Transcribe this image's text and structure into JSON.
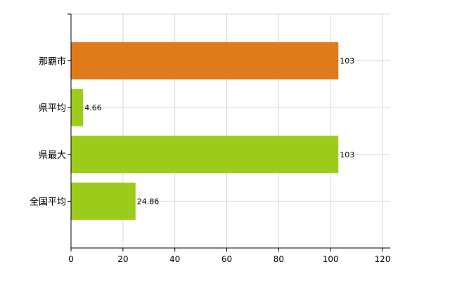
{
  "chart_data": {
    "type": "bar",
    "orientation": "horizontal",
    "categories": [
      "那覇市",
      "県平均",
      "県最大",
      "全国平均"
    ],
    "values": [
      103,
      4.66,
      103,
      24.86
    ],
    "value_labels": [
      "103",
      "4.66",
      "103",
      "24.86"
    ],
    "colors": [
      "#e07b1c",
      "#9ccc1a",
      "#9ccc1a",
      "#9ccc1a"
    ],
    "title": "",
    "xlabel": "",
    "ylabel": "",
    "xlim": [
      0,
      120
    ],
    "x_ticks": [
      0,
      20,
      40,
      60,
      80,
      100,
      120
    ],
    "grid": true,
    "legend": "none"
  }
}
